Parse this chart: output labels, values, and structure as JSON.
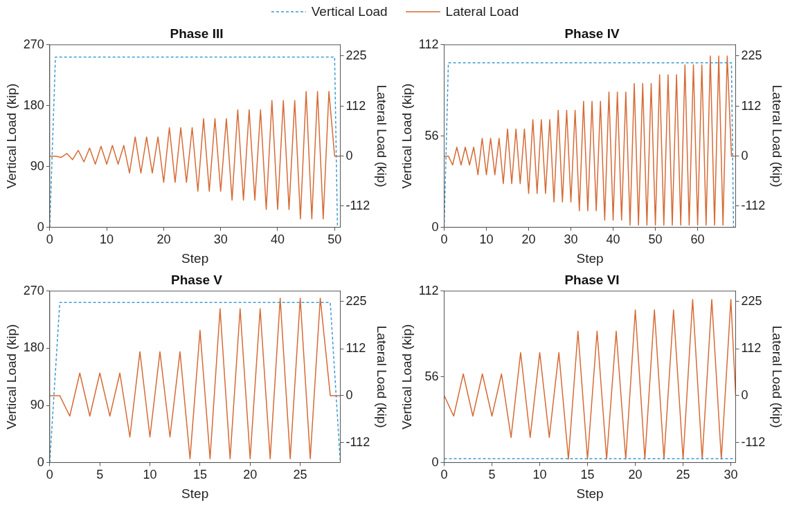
{
  "chart_data": [
    {
      "type": "line",
      "title": "Phase III",
      "xlabel": "Step",
      "ylabel": "Vertical Load (kip)",
      "y2label": "Lateral Load (kip)",
      "legend": "top",
      "marker": "none",
      "grid": false,
      "xlim": [
        0,
        51
      ],
      "xticks": [
        0,
        10,
        20,
        30,
        40,
        50
      ],
      "ylim": [
        0,
        270
      ],
      "yticks": [
        0,
        90,
        180,
        270
      ],
      "y2lim": [
        -160,
        250
      ],
      "y2ticks": [
        -112,
        0,
        112,
        225
      ],
      "x": [
        0,
        1,
        2,
        3,
        4,
        5,
        6,
        7,
        8,
        9,
        10,
        11,
        12,
        13,
        14,
        15,
        16,
        17,
        18,
        19,
        20,
        21,
        22,
        23,
        24,
        25,
        26,
        27,
        28,
        29,
        30,
        31,
        32,
        33,
        34,
        35,
        36,
        37,
        38,
        39,
        40,
        41,
        42,
        43,
        44,
        45,
        46,
        47,
        48,
        49,
        50,
        51
      ],
      "series": [
        {
          "name": "Vertical Load",
          "color": "#3d9bd1",
          "line_style": "dashed",
          "axis": "y",
          "x": [
            0,
            1,
            50,
            50.5
          ],
          "values": [
            0,
            252,
            252,
            0
          ]
        },
        {
          "name": "Lateral Load",
          "color": "#d66a35",
          "line_style": "solid",
          "axis": "y2",
          "values": [
            0,
            0,
            -3,
            6,
            -8,
            13,
            -13,
            18,
            -18,
            22,
            -18,
            24,
            -18,
            24,
            -38,
            43,
            -38,
            43,
            -38,
            43,
            -59,
            64,
            -59,
            64,
            -59,
            64,
            -79,
            84,
            -79,
            84,
            -79,
            84,
            -99,
            104,
            -99,
            104,
            -99,
            104,
            -120,
            125,
            -120,
            125,
            -120,
            125,
            -141,
            145,
            -141,
            145,
            -141,
            145,
            0,
            0
          ]
        }
      ]
    },
    {
      "type": "line",
      "title": "Phase IV",
      "xlabel": "Step",
      "ylabel": "Vertical Load (kip)",
      "y2label": "Lateral Load (kip)",
      "marker": "none",
      "grid": false,
      "xlim": [
        0,
        69
      ],
      "xticks": [
        0,
        10,
        20,
        30,
        40,
        50,
        60
      ],
      "ylim": [
        0,
        112
      ],
      "yticks": [
        0,
        56,
        112
      ],
      "y2lim": [
        -160,
        250
      ],
      "y2ticks": [
        -112,
        0,
        112,
        225
      ],
      "x": [
        0,
        1,
        2,
        3,
        4,
        5,
        6,
        7,
        8,
        9,
        10,
        11,
        12,
        13,
        14,
        15,
        16,
        17,
        18,
        19,
        20,
        21,
        22,
        23,
        24,
        25,
        26,
        27,
        28,
        29,
        30,
        31,
        32,
        33,
        34,
        35,
        36,
        37,
        38,
        39,
        40,
        41,
        42,
        43,
        44,
        45,
        46,
        47,
        48,
        49,
        50,
        51,
        52,
        53,
        54,
        55,
        56,
        57,
        58,
        59,
        60,
        61,
        62,
        63,
        64,
        65,
        66,
        67,
        68,
        69
      ],
      "series": [
        {
          "color": "#3d9bd1",
          "line_style": "dashed",
          "axis": "y",
          "x": [
            0,
            1,
            68,
            68.5
          ],
          "values": [
            0,
            101,
            101,
            0
          ]
        },
        {
          "color": "#d66a35",
          "line_style": "solid",
          "axis": "y2",
          "values": [
            0,
            0,
            -20,
            20,
            -20,
            20,
            -20,
            20,
            -42,
            40,
            -42,
            40,
            -42,
            40,
            -62,
            61,
            -62,
            61,
            -62,
            61,
            -84,
            82,
            -84,
            82,
            -84,
            82,
            -103,
            103,
            -103,
            103,
            -103,
            103,
            -123,
            123,
            -123,
            123,
            -123,
            123,
            -144,
            144,
            -144,
            144,
            -144,
            144,
            -155,
            163,
            -155,
            163,
            -155,
            163,
            -155,
            183,
            -155,
            183,
            -155,
            183,
            -155,
            205,
            -155,
            205,
            -155,
            205,
            -155,
            225,
            -155,
            225,
            -155,
            225,
            0,
            0
          ]
        }
      ]
    },
    {
      "type": "line",
      "title": "Phase V",
      "xlabel": "Step",
      "ylabel": "Vertical Load (kip)",
      "y2label": "Lateral Load (kip)",
      "marker": "none",
      "grid": false,
      "xlim": [
        0,
        29
      ],
      "xticks": [
        0,
        5,
        10,
        15,
        20,
        25
      ],
      "ylim": [
        0,
        270
      ],
      "yticks": [
        0,
        90,
        180,
        270
      ],
      "y2lim": [
        -160,
        250
      ],
      "y2ticks": [
        -112,
        0,
        112,
        225
      ],
      "x": [
        0,
        1,
        2,
        3,
        4,
        5,
        6,
        7,
        8,
        9,
        10,
        11,
        12,
        13,
        14,
        15,
        16,
        17,
        18,
        19,
        20,
        21,
        22,
        23,
        24,
        25,
        26,
        27,
        28,
        29
      ],
      "series": [
        {
          "color": "#3d9bd1",
          "line_style": "dashed",
          "axis": "y",
          "x": [
            0,
            1,
            28,
            29
          ],
          "values": [
            0,
            252,
            252,
            0
          ]
        },
        {
          "color": "#d66a35",
          "line_style": "solid",
          "axis": "y2",
          "values": [
            0,
            0,
            -49,
            54,
            -49,
            54,
            -49,
            54,
            -99,
            105,
            -99,
            105,
            -99,
            105,
            -151,
            156,
            -151,
            208,
            -151,
            208,
            -151,
            208,
            -151,
            233,
            -151,
            233,
            -151,
            233,
            0,
            0
          ]
        }
      ]
    },
    {
      "type": "line",
      "title": "Phase VI",
      "xlabel": "Step",
      "ylabel": "Vertical Load (kip)",
      "y2label": "Lateral Load (kip)",
      "marker": "none",
      "grid": false,
      "xlim": [
        0,
        30.5
      ],
      "xticks": [
        0,
        5,
        10,
        15,
        20,
        25,
        30
      ],
      "ylim": [
        0,
        112
      ],
      "yticks": [
        0,
        56,
        112
      ],
      "y2lim": [
        -160,
        250
      ],
      "y2ticks": [
        -112,
        0,
        112,
        225
      ],
      "x": [
        0,
        1,
        2,
        3,
        4,
        5,
        6,
        7,
        8,
        9,
        10,
        11,
        12,
        13,
        14,
        15,
        16,
        17,
        18,
        19,
        20,
        21,
        22,
        23,
        24,
        25,
        26,
        27,
        28,
        29,
        30,
        30.5
      ],
      "series": [
        {
          "color": "#3d9bd1",
          "line_style": "dashed",
          "axis": "y",
          "x": [
            0,
            30.5
          ],
          "values": [
            2.5,
            2.5
          ]
        },
        {
          "color": "#d66a35",
          "line_style": "solid",
          "axis": "y2",
          "values": [
            0,
            -49,
            52,
            -49,
            52,
            -49,
            52,
            -100,
            103,
            -100,
            103,
            -100,
            103,
            -152,
            154,
            -152,
            154,
            -152,
            154,
            -152,
            205,
            -152,
            205,
            -152,
            205,
            -152,
            230,
            -152,
            230,
            -152,
            230,
            0
          ]
        }
      ]
    }
  ]
}
